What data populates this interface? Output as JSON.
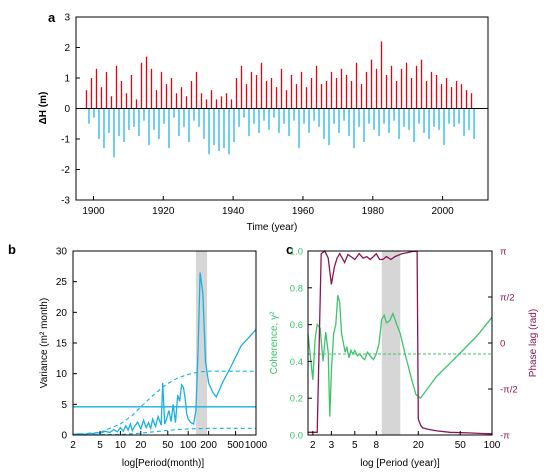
{
  "colors": {
    "positive": "#e8000b",
    "negative": "#1fb8e6",
    "variance": "#1ab0e0",
    "coherence": "#3cc46a",
    "phase": "#8b1550",
    "shade": "#d6d6d6",
    "axis": "#000000"
  },
  "panel_labels": {
    "a": "a",
    "b": "b",
    "c": "c"
  },
  "chart_data": [
    {
      "id": "a",
      "type": "bar",
      "xlabel": "Time (year)",
      "ylabel": "ΔH (m)",
      "xlim": [
        1895,
        2013
      ],
      "ylim": [
        -3,
        3
      ],
      "xticks": [
        1900,
        1920,
        1940,
        1960,
        1980,
        2000
      ],
      "yticks": [
        -3,
        -2,
        -1,
        0,
        1,
        2,
        3
      ],
      "series": [
        {
          "values": [
            0.6,
            -0.5,
            1.0,
            -0.3,
            1.3,
            -1.0,
            0.7,
            -1.3,
            1.2,
            -0.8,
            0.4,
            -1.6,
            1.4,
            -0.9,
            0.9,
            -1.1,
            0.5,
            -0.7,
            1.1,
            -0.6,
            0.3,
            -0.9,
            1.5,
            -0.4,
            1.7,
            -1.2,
            1.3,
            -0.7,
            0.6,
            -1.0,
            1.2,
            -0.5,
            0.8,
            -1.3,
            1.0,
            -0.3,
            0.5,
            -0.9,
            0.7,
            -0.6,
            0.4,
            -1.1,
            0.9,
            -0.4,
            1.2,
            -0.6,
            0.5,
            -1.0,
            0.3,
            -1.5,
            0.6,
            -1.2,
            0.3,
            -1.4,
            0.4,
            -1.3,
            0.5,
            -1.5,
            0.3,
            -1.1,
            1.0,
            -0.6,
            1.4,
            -0.3,
            0.8,
            -0.9,
            1.2,
            -0.5,
            1.1,
            -0.8,
            1.5,
            -0.4,
            0.9,
            -0.7,
            1.0,
            -0.3,
            0.7,
            -0.8,
            1.3,
            -0.5,
            0.6,
            -0.9,
            1.1,
            -0.4,
            0.8,
            -1.3,
            1.2,
            -0.5,
            0.7,
            -0.8,
            1.0,
            -0.4,
            1.4,
            -0.6,
            0.8,
            -1.0,
            0.9,
            -1.2,
            1.2,
            -0.5,
            1.0,
            -0.8,
            1.3,
            -0.4,
            1.1,
            -0.9,
            0.9,
            -1.3,
            1.5,
            -0.6,
            0.8,
            -1.1,
            1.2,
            -0.5,
            1.6,
            -0.7,
            1.3,
            -0.9,
            2.2,
            -0.5,
            1.1,
            -0.8,
            1.4,
            -0.4,
            0.9,
            -1.0,
            1.3,
            -0.6,
            1.5,
            -0.7,
            1.0,
            -1.1,
            1.4,
            -0.5,
            1.6,
            -0.8,
            0.9,
            -1.0,
            1.2,
            -0.6,
            1.1,
            -0.7,
            0.8,
            -1.2,
            1.0,
            -0.5,
            0.7,
            -0.6,
            0.9,
            -0.5,
            0.8,
            -0.9,
            0.6,
            -0.7,
            0.5,
            -1.0
          ]
        }
      ]
    },
    {
      "id": "b",
      "type": "line",
      "xscale": "log",
      "xlabel": "log[Period(month)]",
      "ylabel": "Variance (m² month)",
      "xlim": [
        2,
        1000
      ],
      "ylim": [
        0,
        30
      ],
      "xticks": [
        2,
        5,
        10,
        20,
        50,
        100,
        200,
        500,
        1000
      ],
      "yticks": [
        0,
        5,
        10,
        15,
        20,
        25,
        30
      ],
      "shade": [
        130,
        190
      ],
      "series": [
        {
          "style": "solid",
          "x": [
            2,
            2.5,
            3,
            3.5,
            4,
            4.5,
            5,
            6,
            7,
            8,
            9,
            10,
            11,
            12,
            13,
            14,
            15,
            16,
            18,
            20,
            22,
            24,
            26,
            28,
            30,
            33,
            36,
            40,
            42,
            45,
            48,
            52,
            56,
            60,
            65,
            70,
            75,
            80,
            85,
            90,
            95,
            100,
            110,
            120,
            130,
            140,
            150,
            165,
            180,
            200,
            230,
            260,
            320,
            420,
            600,
            1000
          ],
          "y": [
            0.1,
            0.2,
            0.1,
            0.3,
            0.2,
            0.4,
            0.3,
            0.6,
            0.4,
            0.9,
            0.5,
            1.2,
            0.6,
            1.5,
            0.8,
            1.8,
            0.7,
            1.3,
            2.1,
            1.0,
            2.4,
            1.2,
            2.0,
            1.1,
            2.6,
            1.4,
            3.0,
            1.6,
            8.5,
            1.8,
            2.6,
            4.0,
            2.2,
            5.0,
            2.0,
            6.5,
            5.5,
            8.2,
            7.8,
            6.0,
            3.5,
            2.6,
            2.0,
            1.8,
            4.0,
            14.0,
            26.5,
            23.0,
            12.0,
            8.5,
            7.0,
            6.2,
            8.5,
            11.0,
            14.5,
            17.2
          ]
        },
        {
          "style": "solid",
          "x": [
            2,
            5,
            10,
            20,
            50,
            100,
            200,
            500,
            1000
          ],
          "y": [
            4.6,
            4.6,
            4.6,
            4.6,
            4.6,
            4.6,
            4.6,
            4.6,
            4.6
          ]
        },
        {
          "style": "dashed",
          "x": [
            2,
            5,
            10,
            15,
            20,
            30,
            40,
            50,
            70,
            100,
            150,
            200,
            300,
            500,
            1000
          ],
          "y": [
            0.05,
            0.4,
            1.8,
            3.2,
            4.6,
            6.4,
            7.6,
            8.4,
            9.3,
            9.9,
            10.3,
            10.4,
            10.4,
            10.4,
            10.4
          ]
        },
        {
          "style": "dashed",
          "x": [
            2,
            5,
            10,
            15,
            20,
            30,
            40,
            50,
            70,
            100,
            150,
            200,
            300,
            500,
            1000
          ],
          "y": [
            0.0,
            0.05,
            0.1,
            0.2,
            0.3,
            0.5,
            0.65,
            0.75,
            0.9,
            1.0,
            1.05,
            1.1,
            1.1,
            1.1,
            1.1
          ]
        }
      ]
    },
    {
      "id": "c",
      "type": "line",
      "xscale": "log",
      "xlabel": "log [Period (year)]",
      "ylabel": "Coherence, γ²",
      "ylabel_right": "Phase lag (rad)",
      "xlim": [
        1.8,
        100
      ],
      "ylim": [
        0,
        1
      ],
      "ylim_right": [
        -3.1416,
        3.1416
      ],
      "xticks": [
        2,
        3,
        5,
        8,
        20,
        50,
        100
      ],
      "yticks": [
        0,
        0.2,
        0.4,
        0.6,
        0.8,
        1.0
      ],
      "yticks_right": [
        "-π",
        "-π/2",
        "0",
        "π/2",
        "π"
      ],
      "shade": [
        9,
        13.5
      ],
      "threshold": 0.44,
      "series": [
        {
          "axis": "left",
          "x": [
            1.8,
            1.9,
            2.0,
            2.1,
            2.2,
            2.35,
            2.5,
            2.65,
            2.8,
            2.9,
            3.0,
            3.15,
            3.3,
            3.45,
            3.6,
            3.75,
            3.9,
            4.05,
            4.2,
            4.4,
            4.6,
            4.8,
            5.0,
            5.3,
            5.6,
            5.9,
            6.2,
            6.6,
            7.0,
            7.5,
            8.0,
            8.5,
            9.0,
            9.5,
            10.0,
            10.7,
            11.5,
            12.5,
            13.5,
            15.0,
            17.0,
            19.0,
            21.0,
            25.0,
            30.0,
            40.0,
            55.0,
            75.0,
            100.0
          ],
          "y": [
            0.55,
            0.42,
            0.3,
            0.52,
            0.6,
            0.58,
            0.4,
            0.56,
            0.45,
            0.1,
            0.35,
            0.55,
            0.6,
            0.76,
            0.72,
            0.55,
            0.5,
            0.45,
            0.48,
            0.42,
            0.46,
            0.44,
            0.46,
            0.43,
            0.44,
            0.42,
            0.41,
            0.45,
            0.43,
            0.41,
            0.44,
            0.5,
            0.63,
            0.65,
            0.61,
            0.62,
            0.66,
            0.6,
            0.55,
            0.44,
            0.32,
            0.22,
            0.2,
            0.26,
            0.32,
            0.39,
            0.47,
            0.55,
            0.64
          ]
        },
        {
          "axis": "right",
          "x": [
            1.8,
            2.0,
            2.2,
            2.4,
            2.6,
            2.8,
            3.0,
            3.2,
            3.4,
            3.6,
            3.8,
            4.0,
            4.3,
            4.6,
            5.0,
            5.5,
            6.0,
            6.5,
            7.0,
            7.5,
            8.0,
            8.6,
            9.2,
            10.0,
            11.0,
            12.0,
            13.0,
            14.0,
            15.0,
            16.0,
            17.0,
            18.0,
            19.0,
            19.5,
            20.0,
            21.0,
            22.0,
            25.0,
            30.0,
            40.0,
            60.0,
            80.0,
            100.0
          ],
          "y": [
            -3.05,
            -3.05,
            -3.05,
            3.05,
            3.14,
            2.9,
            2.0,
            2.6,
            2.9,
            3.05,
            2.9,
            2.75,
            3.02,
            2.95,
            2.85,
            3.05,
            2.9,
            2.95,
            2.85,
            2.95,
            3.05,
            2.85,
            2.85,
            2.95,
            2.85,
            2.95,
            3.0,
            3.05,
            3.07,
            3.09,
            3.11,
            3.13,
            3.13,
            3.13,
            -2.6,
            -2.8,
            -2.9,
            -2.95,
            -3.0,
            -3.05,
            -3.07,
            -3.09,
            -3.1
          ]
        }
      ]
    }
  ]
}
